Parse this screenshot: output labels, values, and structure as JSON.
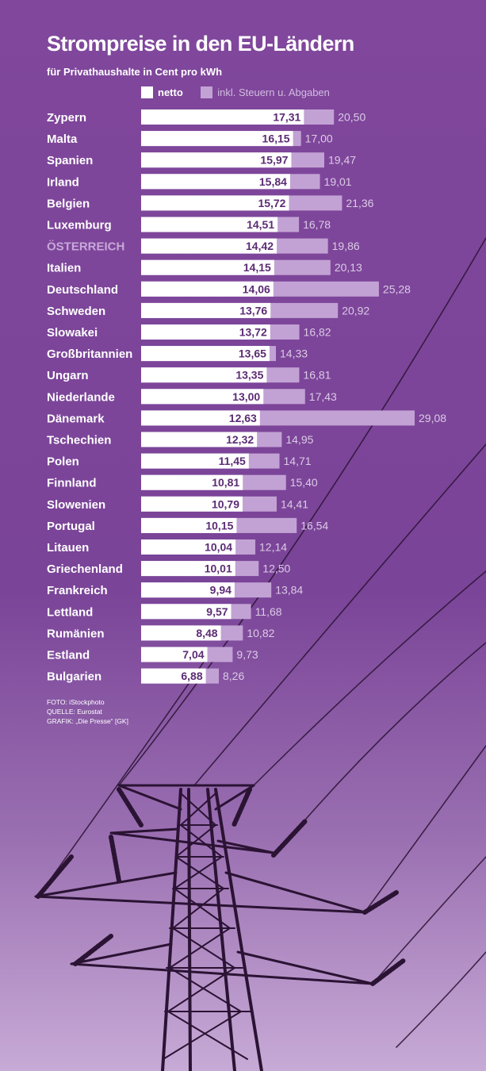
{
  "colors": {
    "background": "#80479c",
    "netto_bar": "#ffffff",
    "gross_bar": "#c2a2d4",
    "netto_label": "#5b2c74",
    "gross_label": "#dccbe6",
    "highlight_country": "#c8a8da"
  },
  "legend": {
    "netto": "netto",
    "inkl": "inkl. Steuern u. Abgaben"
  },
  "credits": {
    "foto": "FOTO: iStockphoto",
    "quelle": "QUELLE: Eurostat",
    "grafik": "GRAFIK: „Die Presse“ [GK]"
  },
  "chart_data": {
    "type": "bar",
    "orientation": "horizontal",
    "title": "Strompreise in den EU-Ländern",
    "subtitle": "für Privathaushalte in Cent pro kWh",
    "xlabel": "",
    "ylabel": "",
    "xlim": [
      0,
      29.08
    ],
    "grid": false,
    "highlight": "ÖSTERREICH",
    "categories": [
      "Zypern",
      "Malta",
      "Spanien",
      "Irland",
      "Belgien",
      "Luxemburg",
      "ÖSTERREICH",
      "Italien",
      "Deutschland",
      "Schweden",
      "Slowakei",
      "Großbritannien",
      "Ungarn",
      "Niederlande",
      "Dänemark",
      "Tschechien",
      "Polen",
      "Finnland",
      "Slowenien",
      "Portugal",
      "Litauen",
      "Griechenland",
      "Frankreich",
      "Lettland",
      "Rumänien",
      "Estland",
      "Bulgarien"
    ],
    "series": [
      {
        "name": "netto",
        "values": [
          17.31,
          16.15,
          15.97,
          15.84,
          15.72,
          14.51,
          14.42,
          14.15,
          14.06,
          13.76,
          13.72,
          13.65,
          13.35,
          13.0,
          12.63,
          12.32,
          11.45,
          10.81,
          10.79,
          10.15,
          10.04,
          10.01,
          9.94,
          9.57,
          8.48,
          7.04,
          6.88
        ],
        "labels": [
          "17,31",
          "16,15",
          "15,97",
          "15,84",
          "15,72",
          "14,51",
          "14,42",
          "14,15",
          "14,06",
          "13,76",
          "13,72",
          "13,65",
          "13,35",
          "13,00",
          "12,63",
          "12,32",
          "11,45",
          "10,81",
          "10,79",
          "10,15",
          "10,04",
          "10,01",
          "9,94",
          "9,57",
          "8,48",
          "7,04",
          "6,88"
        ]
      },
      {
        "name": "inkl. Steuern u. Abgaben",
        "values": [
          20.5,
          17.0,
          19.47,
          19.01,
          21.36,
          16.78,
          19.86,
          20.13,
          25.28,
          20.92,
          16.82,
          14.33,
          16.81,
          17.43,
          29.08,
          14.95,
          14.71,
          15.4,
          14.41,
          16.54,
          12.14,
          12.5,
          13.84,
          11.68,
          10.82,
          9.73,
          8.26
        ],
        "labels": [
          "20,50",
          "17,00",
          "19,47",
          "19,01",
          "21,36",
          "16,78",
          "19,86",
          "20,13",
          "25,28",
          "20,92",
          "16,82",
          "14,33",
          "16,81",
          "17,43",
          "29,08",
          "14,95",
          "14,71",
          "15,40",
          "14,41",
          "16,54",
          "12,14",
          "12,50",
          "13,84",
          "11,68",
          "10,82",
          "9,73",
          "8,26"
        ]
      }
    ]
  }
}
